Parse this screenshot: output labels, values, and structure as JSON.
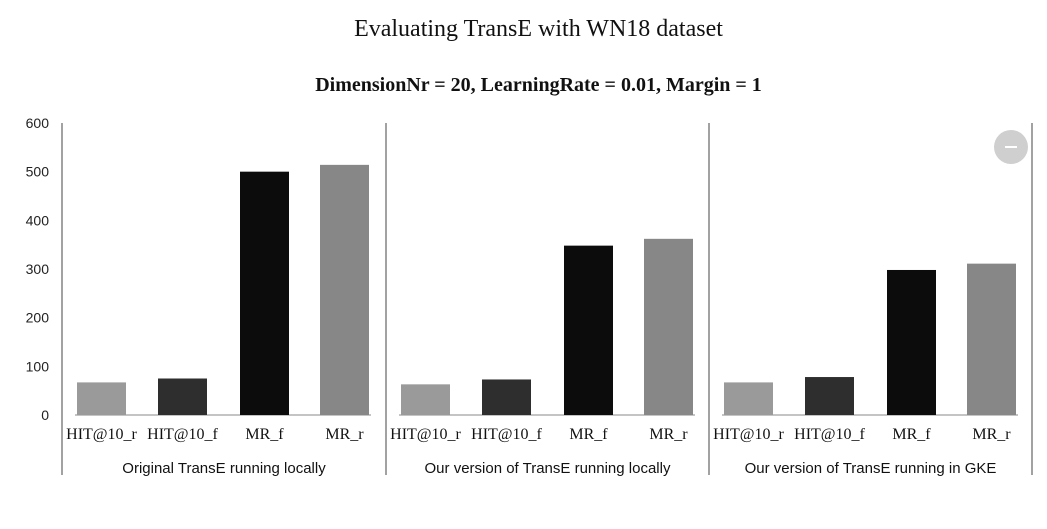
{
  "title": "Evaluating TransE with WN18 dataset",
  "subtitle": "DimensionNr = 20, LearningRate = 0.01, Margin = 1",
  "colors": {
    "HIT@10_r": "#9a9a9a",
    "HIT@10_f": "#2e2e2e",
    "MR_f": "#0c0c0c",
    "MR_r": "#878787"
  },
  "collapse_icon": "minus-circle-icon",
  "chart_data": {
    "type": "bar",
    "yticks": [
      0,
      100,
      200,
      300,
      400,
      500,
      600
    ],
    "ylim": [
      0,
      600
    ],
    "grid": false,
    "groups": [
      {
        "label": "Original TransE running locally",
        "categories": [
          "HIT@10_r",
          "HIT@10_f",
          "MR_f",
          "MR_r"
        ],
        "values": [
          67,
          75,
          500,
          514
        ]
      },
      {
        "label": "Our version of TransE running locally",
        "categories": [
          "HIT@10_r",
          "HIT@10_f",
          "MR_f",
          "MR_r"
        ],
        "values": [
          63,
          73,
          348,
          362
        ]
      },
      {
        "label": "Our version of TransE running in GKE",
        "categories": [
          "HIT@10_r",
          "HIT@10_f",
          "MR_f",
          "MR_r"
        ],
        "values": [
          67,
          78,
          298,
          311
        ]
      }
    ]
  }
}
